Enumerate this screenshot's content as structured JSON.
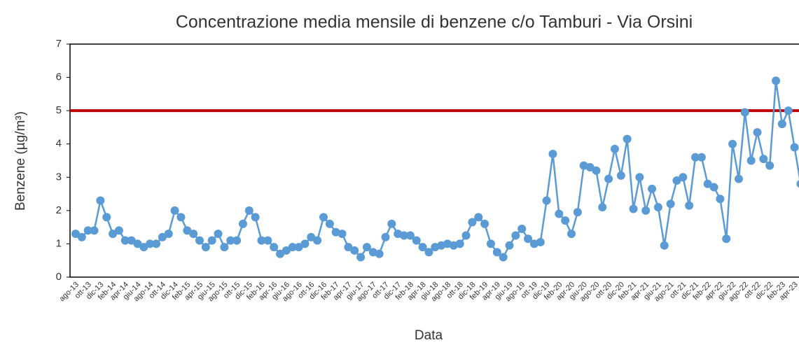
{
  "chart_data": {
    "type": "line",
    "title": "Concentrazione media mensile di benzene c/o Tamburi - Via Orsini",
    "xlabel": "Data",
    "ylabel": "Benzene (µg/m³)",
    "categories": [
      "ago-13",
      null,
      "ott-13",
      null,
      "dic-13",
      null,
      "feb-14",
      null,
      "apr-14",
      null,
      "giu-14",
      null,
      "ago-14",
      null,
      "ott-14",
      null,
      "dic-14",
      null,
      "feb-15",
      null,
      "apr-15",
      null,
      "giu-15",
      null,
      "ago-15",
      null,
      "ott-15",
      null,
      "dic-15",
      null,
      "feb-16",
      null,
      "apr-16",
      null,
      "giu-16",
      null,
      "ago-16",
      null,
      "ott-16",
      null,
      "dic-16",
      null,
      "feb-17",
      null,
      "apr-17",
      null,
      "giu-17",
      null,
      "ago-17",
      null,
      "ott-17",
      null,
      "dic-17",
      null,
      "feb-18",
      null,
      "apr-18",
      null,
      "giu-18",
      null,
      "ago-18",
      null,
      "ott-18",
      null,
      "dic-18",
      null,
      "feb-19",
      null,
      "apr-19",
      null,
      "giu-19",
      null,
      "ago-19",
      null,
      "ott-19",
      null,
      "dic-19",
      null,
      "feb-20",
      null,
      "apr-20",
      null,
      "giu-20",
      null,
      "ago-20",
      null,
      "ott-20",
      null,
      "dic-20",
      null,
      "feb-21",
      null,
      "apr-21",
      null,
      "giu-21",
      null,
      "ago-21",
      null,
      "ott-21",
      null,
      "dic-21",
      null,
      "feb-22",
      null,
      "apr-22",
      null,
      "giu-22",
      null,
      "ago-22",
      null,
      "ott-22",
      null,
      "dic-22",
      null,
      "feb-23",
      null,
      "apr-23",
      null
    ],
    "series": [
      {
        "name": "Benzene",
        "color": "#5b9bd5",
        "values": [
          1.3,
          1.2,
          1.4,
          1.4,
          2.3,
          1.8,
          1.3,
          1.4,
          1.1,
          1.1,
          1.0,
          0.9,
          1.0,
          1.0,
          1.2,
          1.3,
          2.0,
          1.8,
          1.4,
          1.3,
          1.1,
          0.9,
          1.1,
          1.3,
          0.9,
          1.1,
          1.1,
          1.6,
          2.0,
          1.8,
          1.1,
          1.1,
          0.9,
          0.7,
          0.8,
          0.9,
          0.9,
          1.0,
          1.2,
          1.1,
          1.8,
          1.6,
          1.35,
          1.3,
          0.9,
          0.8,
          0.6,
          0.9,
          0.75,
          0.7,
          1.2,
          1.6,
          1.3,
          1.25,
          1.25,
          1.1,
          0.9,
          0.75,
          0.9,
          0.95,
          1.0,
          0.95,
          1.0,
          1.25,
          1.65,
          1.8,
          1.6,
          1.0,
          0.75,
          0.6,
          0.95,
          1.25,
          1.45,
          1.15,
          1.0,
          1.05,
          2.3,
          3.7,
          1.9,
          1.7,
          1.3,
          1.95,
          3.35,
          3.3,
          3.2,
          2.1,
          2.95,
          3.85,
          3.05,
          4.15,
          2.05,
          3.0,
          2.0,
          2.65,
          2.1,
          0.95,
          2.2,
          2.9,
          3.0,
          2.15,
          3.6,
          3.6,
          2.8,
          2.7,
          2.35,
          1.15,
          4.0,
          2.95,
          4.95,
          3.5,
          4.35,
          3.55,
          3.35,
          5.9,
          4.6,
          5.0,
          3.9,
          2.8
        ]
      }
    ],
    "limit": {
      "value": 5,
      "color": "#c00000"
    },
    "ylim": [
      0,
      7
    ],
    "yticks": [
      0,
      1,
      2,
      3,
      4,
      5,
      6,
      7
    ],
    "grid": false
  }
}
